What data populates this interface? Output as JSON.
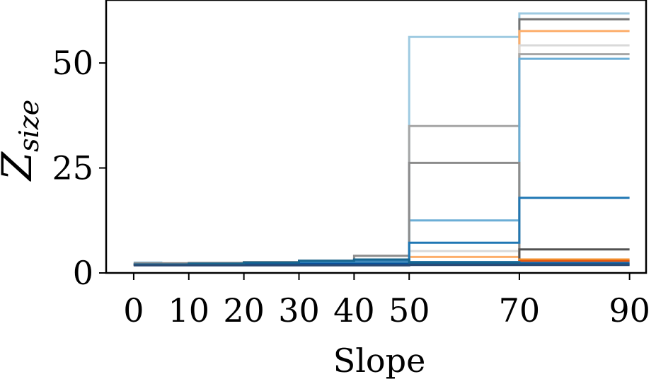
{
  "chart_data": {
    "type": "line",
    "xlabel": "Slope",
    "ylabel": "Z",
    "ylabel_sub": "size",
    "xticks": [
      "0",
      "10",
      "20",
      "30",
      "40",
      "50",
      "70",
      "90"
    ],
    "yticks": [
      "0",
      "25",
      "50"
    ],
    "xlim": [
      -5,
      93
    ],
    "ylim": [
      0,
      65
    ],
    "grid": false,
    "x": [
      0,
      5,
      10,
      15,
      20,
      25,
      30,
      35,
      40,
      45,
      50,
      55,
      60,
      65,
      70,
      75,
      80,
      85,
      90
    ],
    "series": [
      {
        "color": "#9ecae1",
        "values": [
          2.5,
          2.1,
          2.1,
          2.1,
          2.3,
          2.3,
          2.4,
          2.4,
          2.5,
          2.5,
          56.2,
          56.2,
          56.2,
          56.2,
          61.8,
          61.8,
          61.8,
          61.8,
          61.8
        ]
      },
      {
        "color": "#737373",
        "values": [
          2.2,
          2.2,
          2.2,
          2.2,
          2.2,
          2.2,
          2.3,
          2.3,
          2.3,
          2.3,
          2.6,
          2.6,
          2.6,
          2.6,
          60.4,
          60.4,
          60.4,
          60.4,
          60.4
        ]
      },
      {
        "color": "#fdae6b",
        "values": [
          2.0,
          2.0,
          2.0,
          2.0,
          2.0,
          2.0,
          2.1,
          2.1,
          2.1,
          2.1,
          3.8,
          3.8,
          3.8,
          3.8,
          57.6,
          57.6,
          57.6,
          57.6,
          57.6
        ]
      },
      {
        "color": "#d9d9d9",
        "values": [
          2.0,
          2.0,
          2.0,
          2.0,
          2.0,
          2.0,
          2.1,
          2.1,
          2.1,
          2.1,
          5.2,
          5.2,
          5.2,
          5.2,
          54.2,
          54.2,
          54.2,
          54.2,
          54.2
        ]
      },
      {
        "color": "#a6a6a6",
        "values": [
          2.1,
          2.1,
          2.2,
          2.2,
          2.3,
          2.3,
          2.5,
          2.5,
          2.9,
          2.9,
          35.0,
          35.0,
          35.0,
          35.0,
          52.1,
          52.1,
          52.1,
          52.1,
          52.1
        ]
      },
      {
        "color": "#6baed6",
        "values": [
          2.1,
          2.1,
          2.2,
          2.2,
          2.5,
          2.5,
          2.8,
          2.8,
          3.1,
          3.1,
          12.5,
          12.5,
          12.5,
          12.5,
          51.0,
          51.0,
          51.0,
          51.0,
          51.0
        ]
      },
      {
        "color": "#8c8c8c",
        "values": [
          2.3,
          2.3,
          2.4,
          2.4,
          2.6,
          2.6,
          2.9,
          2.9,
          4.1,
          4.1,
          26.2,
          26.2,
          26.2,
          26.2,
          2.9,
          2.9,
          2.9,
          2.9,
          2.9
        ]
      },
      {
        "color": "#1f77b4",
        "values": [
          2.0,
          2.0,
          2.0,
          2.0,
          2.1,
          2.1,
          2.2,
          2.2,
          2.3,
          2.3,
          7.2,
          7.2,
          7.2,
          7.2,
          17.9,
          17.9,
          17.9,
          17.9,
          17.9
        ]
      },
      {
        "color": "#525252",
        "values": [
          2.0,
          2.0,
          2.0,
          2.0,
          2.0,
          2.0,
          2.0,
          2.0,
          2.0,
          2.0,
          2.2,
          2.2,
          2.2,
          2.2,
          5.6,
          5.6,
          5.6,
          5.6,
          5.6
        ]
      },
      {
        "color": "#f28e2b",
        "values": [
          1.9,
          1.9,
          1.9,
          1.9,
          1.9,
          1.9,
          1.9,
          1.9,
          2.0,
          2.0,
          2.1,
          2.1,
          2.1,
          2.1,
          3.2,
          3.2,
          3.2,
          3.2,
          3.2
        ]
      },
      {
        "color": "#e6550d",
        "values": [
          1.9,
          1.9,
          1.9,
          1.9,
          1.9,
          1.9,
          1.9,
          1.9,
          1.9,
          1.9,
          2.0,
          2.0,
          2.0,
          2.0,
          2.8,
          2.8,
          2.8,
          2.8,
          2.8
        ]
      },
      {
        "color": "#3182bd",
        "values": [
          2.0,
          2.0,
          2.1,
          2.1,
          2.4,
          2.4,
          2.7,
          2.7,
          2.9,
          2.9,
          2.6,
          2.6,
          2.6,
          2.6,
          2.4,
          2.4,
          2.4,
          2.4,
          2.4
        ]
      },
      {
        "color": "#08519c",
        "values": [
          2.0,
          2.0,
          2.0,
          2.0,
          2.1,
          2.1,
          2.1,
          2.1,
          2.1,
          2.1,
          2.2,
          2.2,
          2.2,
          2.2,
          2.2,
          2.2,
          2.2,
          2.2,
          2.2
        ]
      },
      {
        "color": "#17668f",
        "values": [
          2.0,
          2.0,
          2.2,
          2.2,
          2.5,
          2.5,
          2.9,
          2.9,
          3.2,
          3.2,
          2.5,
          2.5,
          2.5,
          2.5,
          2.0,
          2.0,
          2.0,
          2.0,
          2.0
        ]
      },
      {
        "color": "#2c4a73",
        "values": [
          1.8,
          1.8,
          1.8,
          1.8,
          1.8,
          1.8,
          1.8,
          1.8,
          1.8,
          1.8,
          1.9,
          1.9,
          1.9,
          1.9,
          1.9,
          1.9,
          1.9,
          1.9,
          1.9
        ]
      }
    ]
  }
}
